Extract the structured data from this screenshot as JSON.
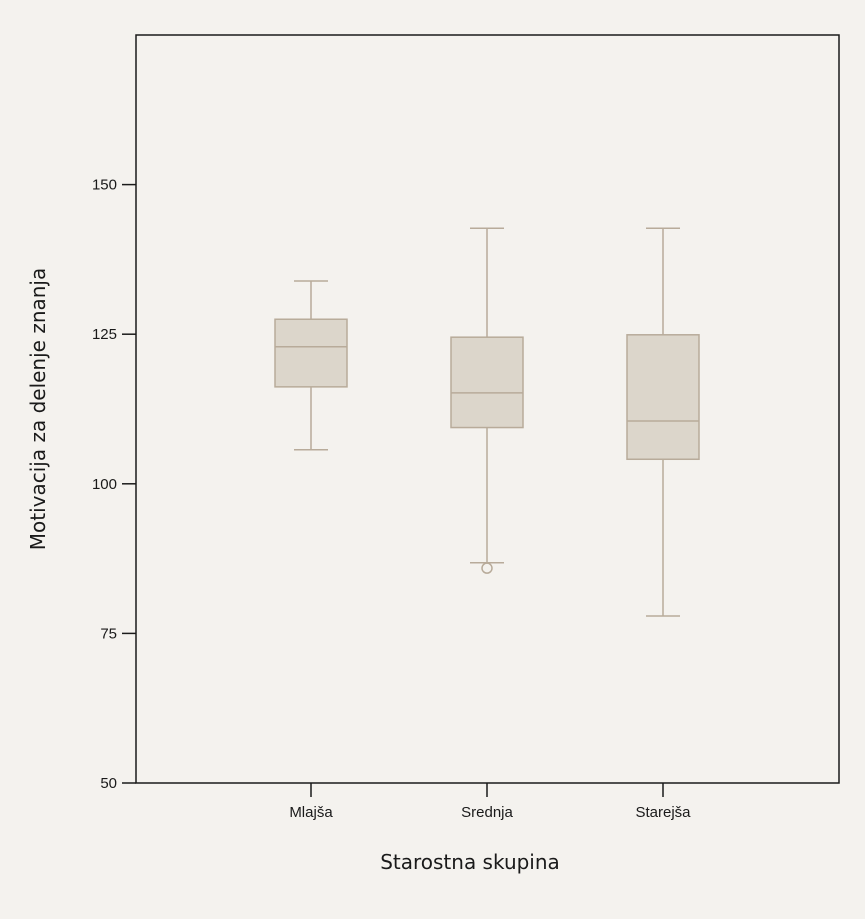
{
  "chart_data": {
    "type": "boxplot",
    "title": "",
    "xlabel": "Starostna skupina",
    "ylabel": "Motivacija za delenje znanja",
    "ylim": [
      50,
      175
    ],
    "yticks": [
      50,
      75,
      100,
      125,
      150
    ],
    "categories": [
      "Mlajša",
      "Srednja",
      "Starejša"
    ],
    "boxes": [
      {
        "category": "Mlajša",
        "whisker_low": 105.7,
        "q1": 116.2,
        "median": 122.9,
        "q3": 127.5,
        "whisker_high": 133.9,
        "outliers": []
      },
      {
        "category": "Srednja",
        "whisker_low": 86.8,
        "q1": 109.4,
        "median": 115.2,
        "q3": 124.5,
        "whisker_high": 142.7,
        "outliers": [
          85.9
        ]
      },
      {
        "category": "Starejša",
        "whisker_low": 77.9,
        "q1": 104.1,
        "median": 110.5,
        "q3": 124.9,
        "whisker_high": 142.7,
        "outliers": []
      }
    ],
    "grid": false,
    "colors": {
      "box_fill": "#dcd6cb",
      "box_stroke": "#b8ab9a",
      "axis": "#1a1a1a",
      "background": "#f4f2ee"
    }
  }
}
